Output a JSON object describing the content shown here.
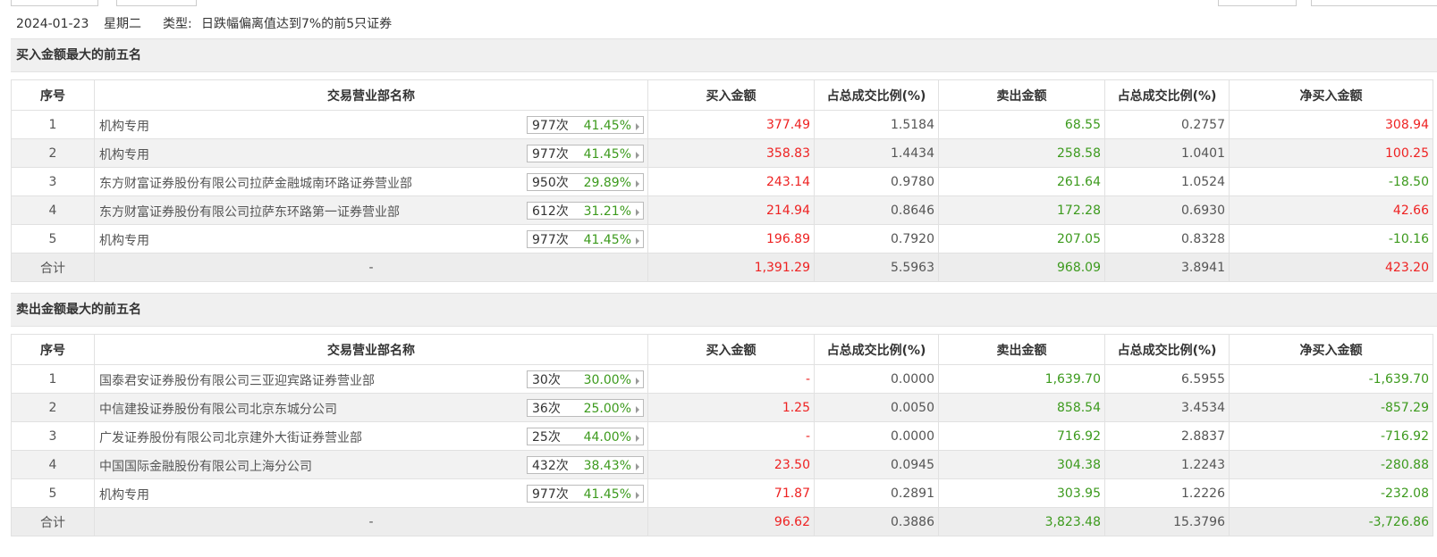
{
  "header": {
    "date": "2024-01-23",
    "weekday": "星期二",
    "type_label": "类型:",
    "type_value": "日跌幅偏离值达到7%的前5只证券"
  },
  "columns": [
    "序号",
    "交易营业部名称",
    "买入金额",
    "占总成交比例(%)",
    "卖出金额",
    "占总成交比例(%)",
    "净买入金额"
  ],
  "buy_section": {
    "title": "买入金额最大的前五名",
    "rows": [
      {
        "idx": "1",
        "name": "机构专用",
        "times": "977次",
        "rate": "41.45%",
        "buy": "377.49",
        "buy_pct": "1.5184",
        "sell": "68.55",
        "sell_pct": "0.2757",
        "net": "308.94"
      },
      {
        "idx": "2",
        "name": "机构专用",
        "times": "977次",
        "rate": "41.45%",
        "buy": "358.83",
        "buy_pct": "1.4434",
        "sell": "258.58",
        "sell_pct": "1.0401",
        "net": "100.25"
      },
      {
        "idx": "3",
        "name": "东方财富证券股份有限公司拉萨金融城南环路证券营业部",
        "times": "950次",
        "rate": "29.89%",
        "buy": "243.14",
        "buy_pct": "0.9780",
        "sell": "261.64",
        "sell_pct": "1.0524",
        "net": "-18.50"
      },
      {
        "idx": "4",
        "name": "东方财富证券股份有限公司拉萨东环路第一证券营业部",
        "times": "612次",
        "rate": "31.21%",
        "buy": "214.94",
        "buy_pct": "0.8646",
        "sell": "172.28",
        "sell_pct": "0.6930",
        "net": "42.66"
      },
      {
        "idx": "5",
        "name": "机构专用",
        "times": "977次",
        "rate": "41.45%",
        "buy": "196.89",
        "buy_pct": "0.7920",
        "sell": "207.05",
        "sell_pct": "0.8328",
        "net": "-10.16"
      }
    ],
    "total": {
      "idx": "合计",
      "name": "-",
      "buy": "1,391.29",
      "buy_pct": "5.5963",
      "sell": "968.09",
      "sell_pct": "3.8941",
      "net": "423.20"
    }
  },
  "sell_section": {
    "title": "卖出金额最大的前五名",
    "rows": [
      {
        "idx": "1",
        "name": "国泰君安证券股份有限公司三亚迎宾路证券营业部",
        "times": "30次",
        "rate": "30.00%",
        "buy": "-",
        "buy_pct": "0.0000",
        "sell": "1,639.70",
        "sell_pct": "6.5955",
        "net": "-1,639.70"
      },
      {
        "idx": "2",
        "name": "中信建投证券股份有限公司北京东城分公司",
        "times": "36次",
        "rate": "25.00%",
        "buy": "1.25",
        "buy_pct": "0.0050",
        "sell": "858.54",
        "sell_pct": "3.4534",
        "net": "-857.29"
      },
      {
        "idx": "3",
        "name": "广发证券股份有限公司北京建外大街证券营业部",
        "times": "25次",
        "rate": "44.00%",
        "buy": "-",
        "buy_pct": "0.0000",
        "sell": "716.92",
        "sell_pct": "2.8837",
        "net": "-716.92"
      },
      {
        "idx": "4",
        "name": "中国国际金融股份有限公司上海分公司",
        "times": "432次",
        "rate": "38.43%",
        "buy": "23.50",
        "buy_pct": "0.0945",
        "sell": "304.38",
        "sell_pct": "1.2243",
        "net": "-280.88"
      },
      {
        "idx": "5",
        "name": "机构专用",
        "times": "977次",
        "rate": "41.45%",
        "buy": "71.87",
        "buy_pct": "0.2891",
        "sell": "303.95",
        "sell_pct": "1.2226",
        "net": "-232.08"
      }
    ],
    "total": {
      "idx": "合计",
      "name": "-",
      "buy": "96.62",
      "buy_pct": "0.3886",
      "sell": "3,823.48",
      "sell_pct": "15.3796",
      "net": "-3,726.86"
    }
  },
  "colors": {
    "positive": "#e22222",
    "negative": "#3c9a1d",
    "header_bg": "#f0f0f0",
    "stripe_bg": "#f2f2f2"
  }
}
